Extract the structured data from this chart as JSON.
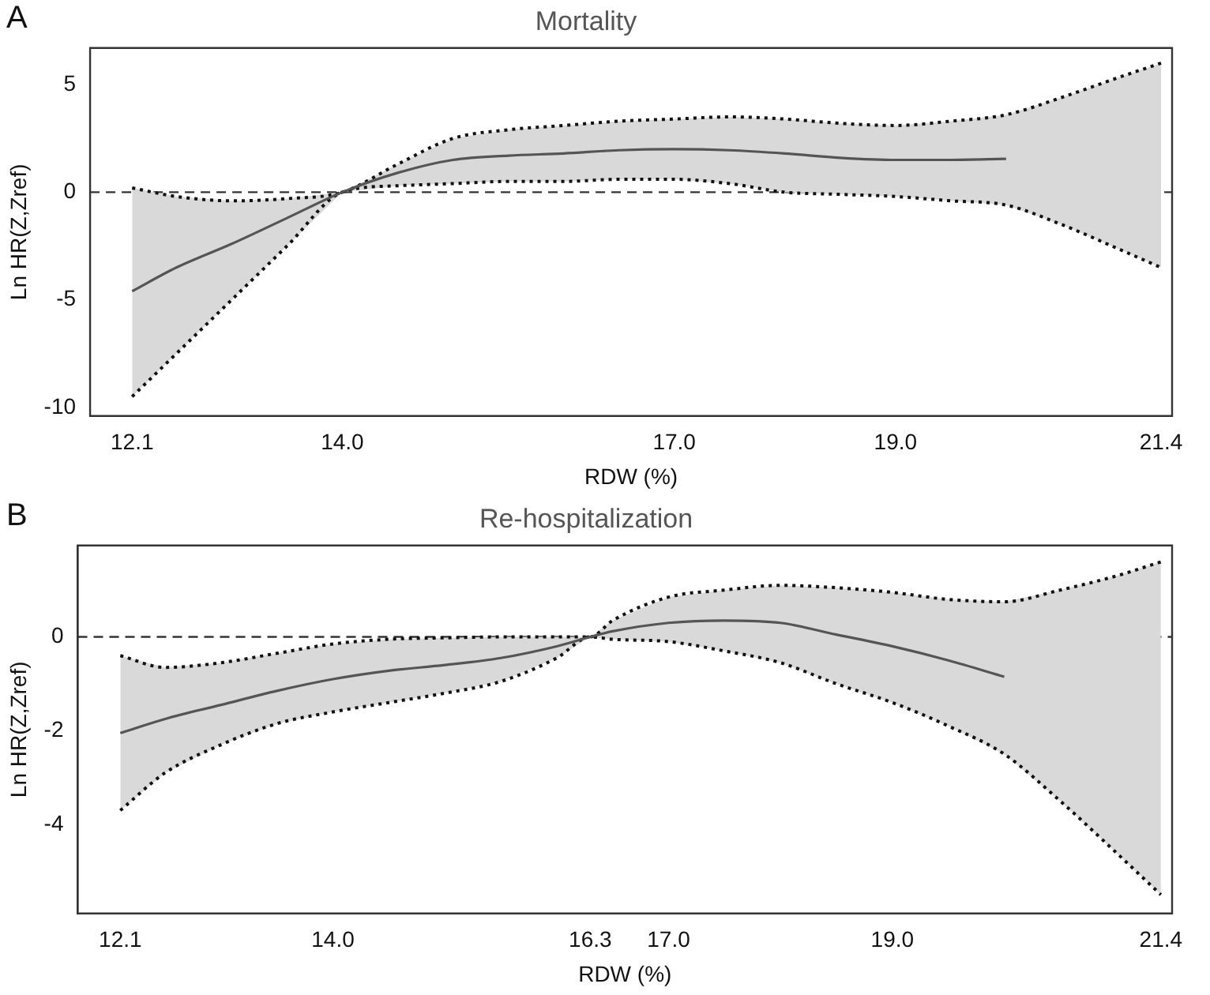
{
  "chart_data": [
    {
      "type": "line",
      "title": "Mortality",
      "xlabel": "RDW (%)",
      "ylabel": "Ln HR(Z,Zref)",
      "annotations": [
        "A"
      ],
      "grid": false,
      "legend": false,
      "xlim": [
        11.72,
        21.5
      ],
      "ylim": [
        -10.4,
        6.7
      ],
      "xticks": [
        {
          "value": 12.1,
          "label": "12.1"
        },
        {
          "value": 14,
          "label": "14.0"
        },
        {
          "value": 17,
          "label": "17.0"
        },
        {
          "value": 19,
          "label": "19.0"
        },
        {
          "value": 21.4,
          "label": "21.4"
        }
      ],
      "yticks": [
        -10,
        -5,
        0,
        5
      ],
      "ref_lines": [
        {
          "axis": "y",
          "value": 0,
          "color": "#333333",
          "line_style": "dashed"
        }
      ],
      "series": [
        {
          "type": "line",
          "color": "#555555",
          "line_style": "solid",
          "marker": "none",
          "x": [
            12.1,
            12.5,
            13,
            13.5,
            14,
            14.5,
            15,
            15.5,
            16,
            16.5,
            17,
            17.5,
            18,
            18.5,
            19,
            19.5,
            20,
            20.5,
            21,
            21.4
          ],
          "values": [
            -4.6,
            -3.5,
            -2.4,
            -1.2,
            0,
            0.9,
            1.5,
            1.7,
            1.8,
            1.95,
            2,
            1.95,
            1.8,
            1.6,
            1.5,
            1.5,
            1.55,
            null,
            null,
            null
          ],
          "upper": [
            0.2,
            -0.2,
            -0.4,
            -0.3,
            0,
            1.3,
            2.5,
            2.9,
            3.1,
            3.3,
            3.4,
            3.5,
            3.4,
            3.2,
            3.1,
            3.3,
            3.6,
            4.4,
            5.3,
            6
          ],
          "lower": [
            -9.5,
            -7.5,
            -5,
            -2.5,
            0,
            0.3,
            0.4,
            0.5,
            0.5,
            0.6,
            0.6,
            0.4,
            0,
            -0.1,
            -0.2,
            -0.4,
            -0.6,
            -1.5,
            -2.6,
            -3.5
          ]
        },
        {
          "type": "line",
          "color": "#111111",
          "line_style": "dotted",
          "marker": "none",
          "x": [
            12.1,
            12.5,
            13,
            13.5,
            14,
            14.5,
            15,
            15.5,
            16,
            16.5,
            17,
            17.5,
            18,
            18.5,
            19,
            19.5,
            20,
            20.5,
            21,
            21.4
          ],
          "values": [
            0.2,
            -0.2,
            -0.4,
            -0.3,
            0,
            1.3,
            2.5,
            2.9,
            3.1,
            3.3,
            3.4,
            3.5,
            3.4,
            3.2,
            3.1,
            3.3,
            3.6,
            4.4,
            5.3,
            6
          ]
        },
        {
          "type": "line",
          "color": "#111111",
          "line_style": "dotted",
          "marker": "none",
          "x": [
            12.1,
            12.5,
            13,
            13.5,
            14,
            14.5,
            15,
            15.5,
            16,
            16.5,
            17,
            17.5,
            18,
            18.5,
            19,
            19.5,
            20,
            20.5,
            21,
            21.4
          ],
          "values": [
            -9.5,
            -7.5,
            -5,
            -2.5,
            0,
            0.3,
            0.4,
            0.5,
            0.5,
            0.6,
            0.6,
            0.4,
            0,
            -0.1,
            -0.2,
            -0.4,
            -0.6,
            -1.5,
            -2.6,
            -3.5
          ]
        }
      ]
    },
    {
      "type": "line",
      "title": "Re-hospitalization",
      "xlabel": "RDW (%)",
      "ylabel": "Ln HR(Z,Zref)",
      "annotations": [
        "B"
      ],
      "grid": false,
      "legend": false,
      "xlim": [
        11.72,
        21.5
      ],
      "ylim": [
        -5.9,
        1.95
      ],
      "xticks": [
        {
          "value": 12.1,
          "label": "12.1"
        },
        {
          "value": 14,
          "label": "14.0"
        },
        {
          "value": 16.3,
          "label": "16.3"
        },
        {
          "value": 17,
          "label": "17.0"
        },
        {
          "value": 19,
          "label": "19.0"
        },
        {
          "value": 21.4,
          "label": "21.4"
        }
      ],
      "yticks": [
        -4,
        -2,
        0
      ],
      "ref_lines": [
        {
          "axis": "y",
          "value": 0,
          "color": "#333333",
          "line_style": "dashed"
        }
      ],
      "series": [
        {
          "type": "line",
          "color": "#555555",
          "line_style": "solid",
          "marker": "none",
          "x": [
            12.1,
            12.5,
            13,
            13.5,
            14,
            14.5,
            15,
            15.5,
            16,
            16.3,
            16.5,
            17,
            17.5,
            18,
            18.5,
            19,
            19.5,
            20,
            20.5,
            21,
            21.4
          ],
          "values": [
            -2.05,
            -1.75,
            -1.45,
            -1.15,
            -0.9,
            -0.72,
            -0.6,
            -0.45,
            -0.2,
            0,
            0.12,
            0.3,
            0.35,
            0.3,
            0.05,
            -0.2,
            -0.5,
            -0.85,
            null,
            null,
            null
          ],
          "upper": [
            -0.4,
            -0.65,
            -0.55,
            -0.35,
            -0.15,
            -0.05,
            -0.02,
            0,
            0,
            0,
            0.35,
            0.85,
            1,
            1.1,
            1.05,
            0.95,
            0.8,
            0.75,
            1,
            1.3,
            1.6
          ],
          "lower": [
            -3.7,
            -2.9,
            -2.3,
            -1.85,
            -1.6,
            -1.4,
            -1.2,
            -0.95,
            -0.45,
            0,
            -0.05,
            -0.1,
            -0.3,
            -0.55,
            -1,
            -1.4,
            -1.9,
            -2.5,
            -3.5,
            -4.6,
            -5.5
          ]
        },
        {
          "type": "line",
          "color": "#111111",
          "line_style": "dotted",
          "marker": "none",
          "x": [
            12.1,
            12.5,
            13,
            13.5,
            14,
            14.5,
            15,
            15.5,
            16,
            16.3,
            16.5,
            17,
            17.5,
            18,
            18.5,
            19,
            19.5,
            20,
            20.5,
            21,
            21.4
          ],
          "values": [
            -0.4,
            -0.65,
            -0.55,
            -0.35,
            -0.15,
            -0.05,
            -0.02,
            0,
            0,
            0,
            0.35,
            0.85,
            1,
            1.1,
            1.05,
            0.95,
            0.8,
            0.75,
            1,
            1.3,
            1.6
          ]
        },
        {
          "type": "line",
          "color": "#111111",
          "line_style": "dotted",
          "marker": "none",
          "x": [
            12.1,
            12.5,
            13,
            13.5,
            14,
            14.5,
            15,
            15.5,
            16,
            16.3,
            16.5,
            17,
            17.5,
            18,
            18.5,
            19,
            19.5,
            20,
            20.5,
            21,
            21.4
          ],
          "values": [
            -3.7,
            -2.9,
            -2.3,
            -1.85,
            -1.6,
            -1.4,
            -1.2,
            -0.95,
            -0.45,
            0,
            -0.05,
            -0.1,
            -0.3,
            -0.55,
            -1,
            -1.4,
            -1.9,
            -2.5,
            -3.5,
            -4.6,
            -5.5
          ]
        }
      ]
    }
  ]
}
